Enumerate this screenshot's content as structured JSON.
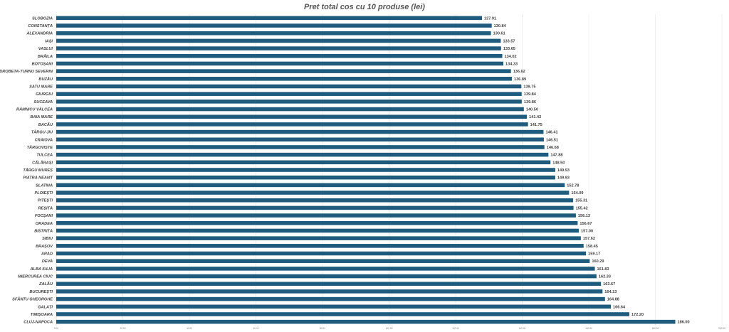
{
  "chart_data": {
    "type": "bar",
    "orientation": "horizontal",
    "title": "Pret total cos cu 10 produse (lei)",
    "bar_color": "#1e5b7c",
    "xlim": [
      0,
      200
    ],
    "grid": true,
    "x_ticks": [
      "0.00",
      "20.00",
      "40.00",
      "60.00",
      "80.00",
      "100.00",
      "120.00",
      "140.00",
      "160.00",
      "180.00",
      "200.00"
    ],
    "categories": [
      "SLOBOZIA",
      "CONSTANȚA",
      "ALEXANDRIA",
      "IAȘI",
      "VASLUI",
      "BRĂILA",
      "BOTOȘANI",
      "DROBETA-TURNU SEVERIN",
      "BUZĂU",
      "SATU MARE",
      "GIURGIU",
      "SUCEAVA",
      "RÂMNICU VÂLCEA",
      "BAIA MARE",
      "BACĂU",
      "TÂRGU JIU",
      "CRAIOVA",
      "TÂRGOVIȘTE",
      "TULCEA",
      "CĂLĂRAȘI",
      "TÂRGU MUREȘ",
      "PIATRA NEAMȚ",
      "SLATINA",
      "PLOIEȘTI",
      "PITEȘTI",
      "REȘIȚA",
      "FOCȘANI",
      "ORADEA",
      "BISTRIȚA",
      "SIBIU",
      "BRAȘOV",
      "ARAD",
      "DEVA",
      "ALBA IULIA",
      "MIERCUREA CIUC",
      "ZALĂU",
      "BUCUREȘTI",
      "SFÂNTU GHEORGHE",
      "GALAȚI",
      "TIMIȘOARA",
      "CLUJ-NAPOCA"
    ],
    "values": [
      127.91,
      130.84,
      130.61,
      133.57,
      133.65,
      134.02,
      134.33,
      136.62,
      136.89,
      139.75,
      139.84,
      139.86,
      140.5,
      141.42,
      141.75,
      146.41,
      146.51,
      146.68,
      147.88,
      148.5,
      149.93,
      149.93,
      152.78,
      154.09,
      155.31,
      155.42,
      156.13,
      156.67,
      157.0,
      157.62,
      158.45,
      159.17,
      160.29,
      161.83,
      162.33,
      163.67,
      164.13,
      164.88,
      166.64,
      172.2,
      186.0
    ],
    "value_labels": [
      "127.91",
      "130.84",
      "130.61",
      "133.57",
      "133.65",
      "134.02",
      "134.33",
      "136.62",
      "136.89",
      "139.75",
      "139.84",
      "139.86",
      "140.50",
      "141.42",
      "141.75",
      "146.41",
      "146.51",
      "146.68",
      "147.88",
      "148.50",
      "149.93",
      "149.93",
      "152.78",
      "154.09",
      "155.31",
      "155.42",
      "156.13",
      "156.67",
      "157.00",
      "157.62",
      "158.45",
      "159.17",
      "160.29",
      "161.83",
      "162.33",
      "163.67",
      "164.13",
      "164.88",
      "166.64",
      "172.20",
      "186.00"
    ]
  }
}
